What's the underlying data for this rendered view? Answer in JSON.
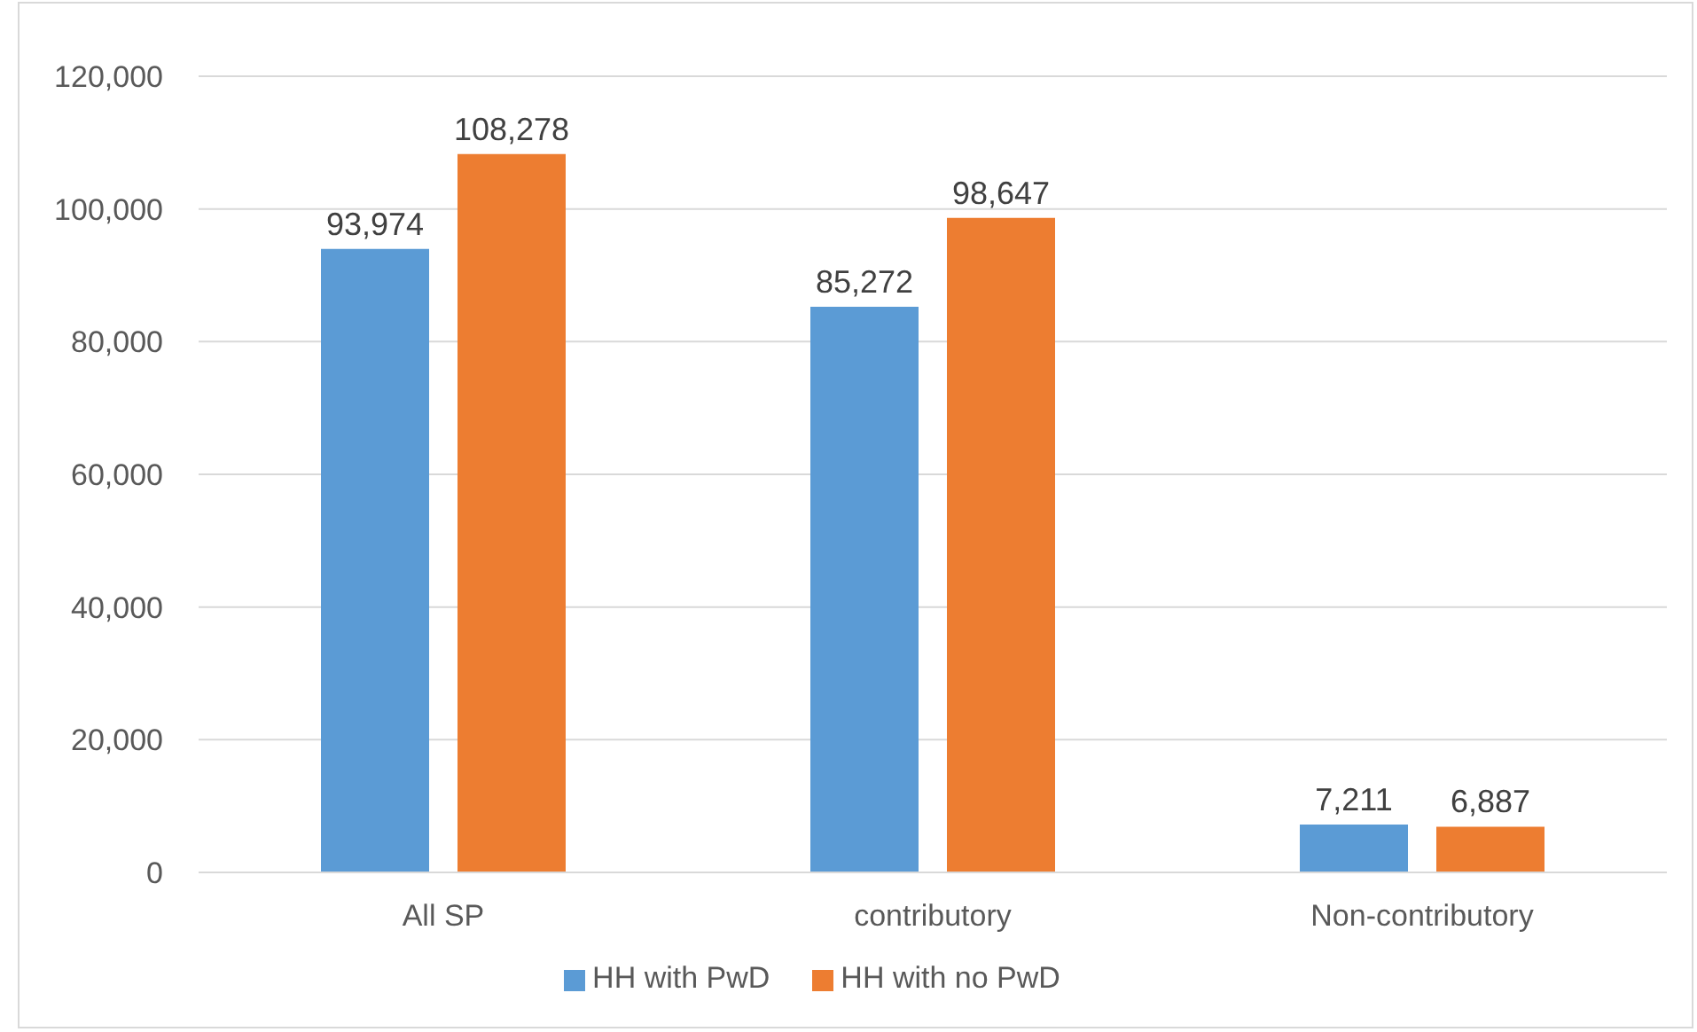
{
  "chart_data": {
    "type": "bar",
    "categories": [
      "All SP",
      "contributory",
      "Non-contributory"
    ],
    "series": [
      {
        "name": "HH with PwD",
        "color": "#5b9bd5",
        "values": [
          93974,
          85272,
          7211
        ],
        "value_labels": [
          "93,974",
          "85,272",
          "7,211"
        ]
      },
      {
        "name": "HH with no PwD",
        "color": "#ed7d31",
        "values": [
          108278,
          98647,
          6887
        ],
        "value_labels": [
          "108,278",
          "98,647",
          "6,887"
        ]
      }
    ],
    "ylim": [
      0,
      120000
    ],
    "yticks": [
      0,
      {
        "value": 20000,
        "label": "20,000"
      },
      {
        "value": 40000,
        "label": "40,000"
      },
      {
        "value": 60000,
        "label": "60,000"
      },
      {
        "value": 80000,
        "label": "80,000"
      },
      {
        "value": 100000,
        "label": "100,000"
      },
      {
        "value": 120000,
        "label": "120,000"
      }
    ],
    "grid": "y",
    "legend": "bottom"
  }
}
